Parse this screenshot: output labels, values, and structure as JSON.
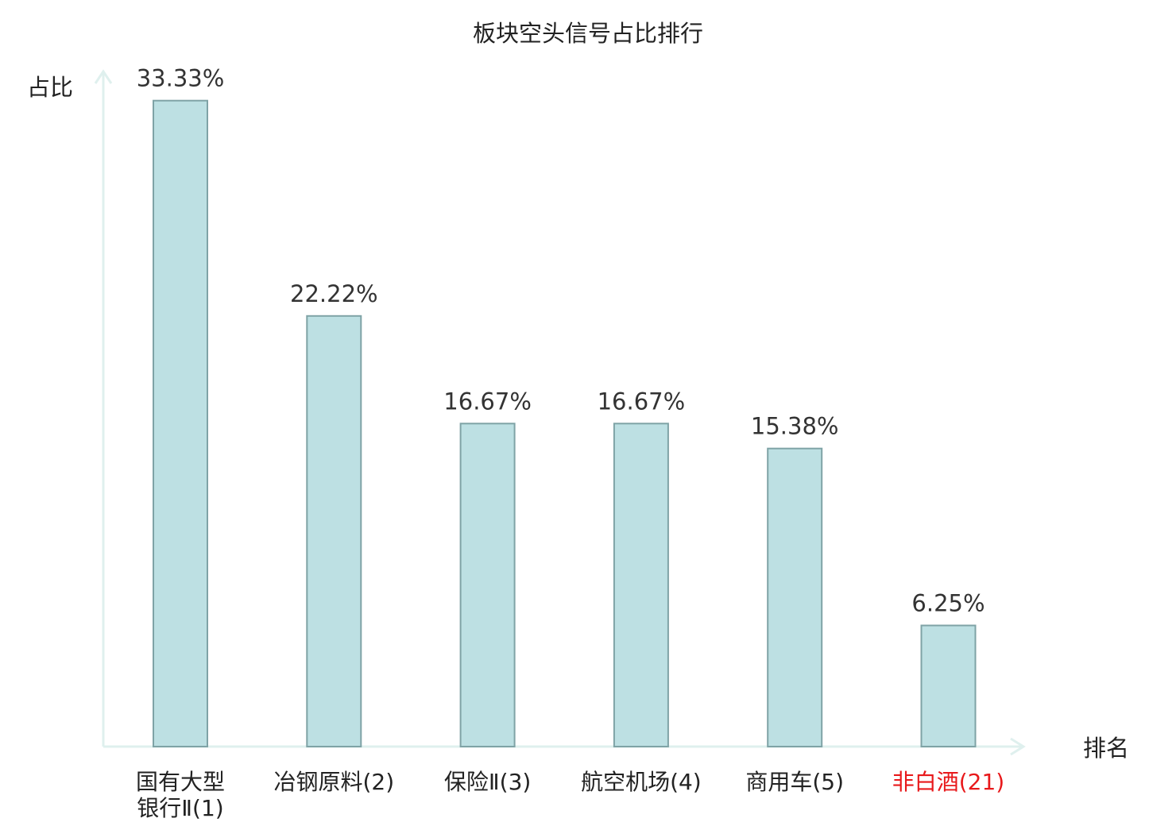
{
  "chart_data": {
    "type": "bar",
    "title": "板块空头信号占比排行",
    "xlabel": "排名",
    "ylabel": "占比",
    "categories": [
      [
        "国有大型",
        "银行Ⅱ(1)"
      ],
      [
        "冶钢原料(2)"
      ],
      [
        "保险Ⅱ(3)"
      ],
      [
        "航空机场(4)"
      ],
      [
        "商用车(5)"
      ],
      [
        "非白酒(21)"
      ]
    ],
    "values": [
      33.33,
      22.22,
      16.67,
      16.67,
      15.38,
      6.25
    ],
    "value_labels": [
      "33.33%",
      "22.22%",
      "16.67%",
      "16.67%",
      "15.38%",
      "6.25%"
    ],
    "highlight_index": 5,
    "ylim": [
      0,
      35
    ],
    "grid": false,
    "colors": {
      "bar_fill": "#bde0e3",
      "bar_stroke": "#7fa3a6",
      "axis": "#dff0ee",
      "text": "#333333",
      "highlight_text": "#e8191b"
    }
  }
}
